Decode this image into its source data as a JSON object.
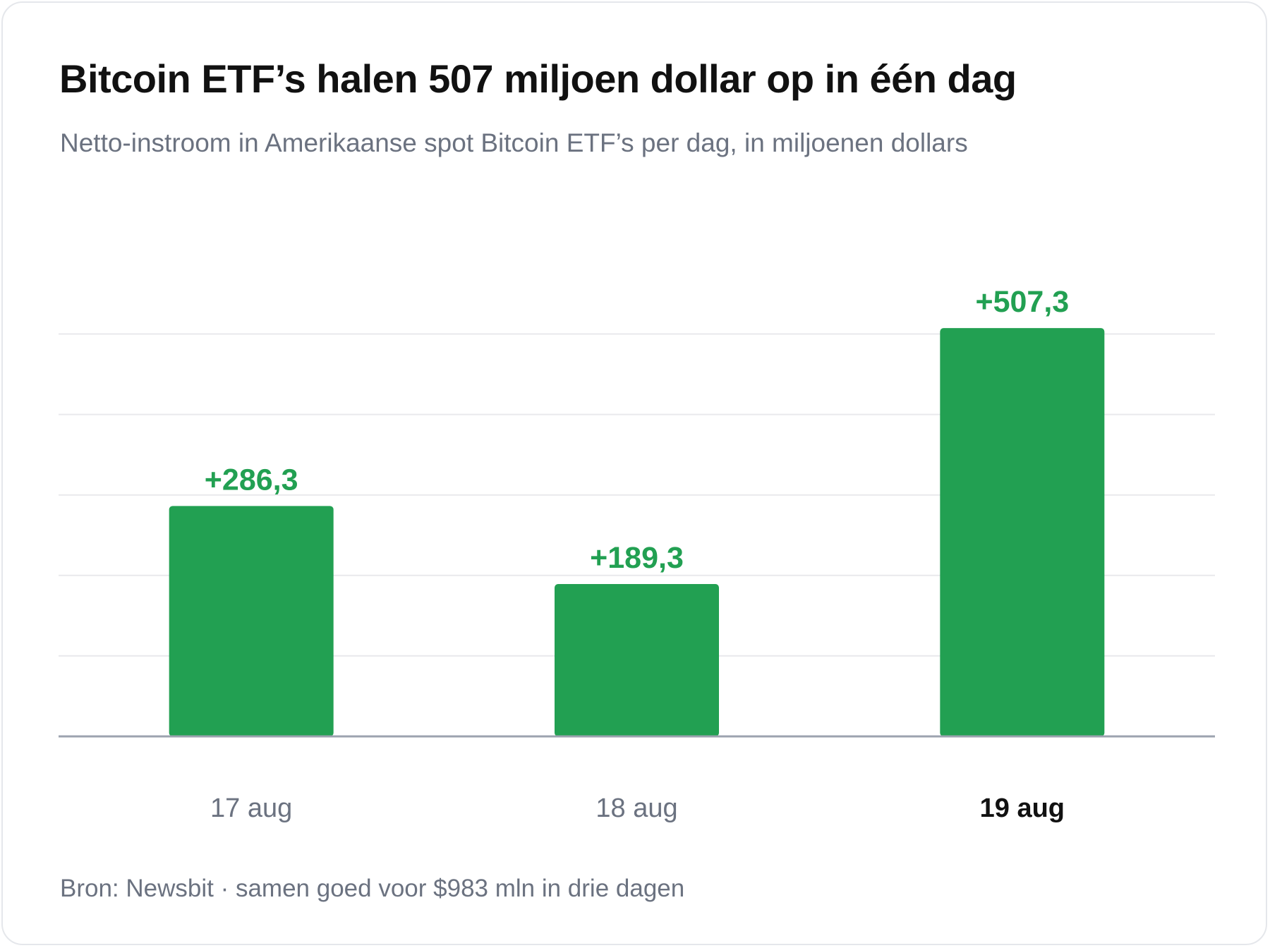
{
  "title": "Bitcoin ETF’s halen 507 miljoen dollar op in één dag",
  "subtitle": "Netto-instroom in Amerikaanse spot Bitcoin ETF’s per dag, in miljoenen dollars",
  "footer": "Bron: Newsbit · samen goed voor $983 mln in drie dagen",
  "colors": {
    "bar": "#22a052",
    "value_label": "#22a052",
    "grid": "#e9e9ec",
    "axis": "#9ca3af",
    "category_label": "#6b7280",
    "category_label_highlight": "#111111"
  },
  "chart_data": {
    "type": "bar",
    "categories": [
      "17 aug",
      "18 aug",
      "19 aug"
    ],
    "values": [
      286.3,
      189.3,
      507.3
    ],
    "value_labels": [
      "+286,3",
      "+189,3",
      "+507,3"
    ],
    "highlighted_category": "19 aug",
    "ylim": [
      0,
      500
    ],
    "gridlines": [
      100,
      200,
      300,
      400,
      500
    ],
    "grid": true,
    "legend": false
  }
}
